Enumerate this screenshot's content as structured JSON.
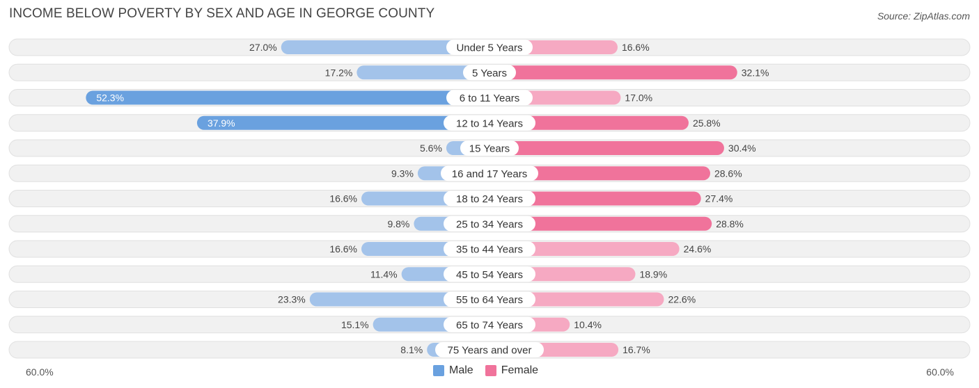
{
  "title": "INCOME BELOW POVERTY BY SEX AND AGE IN GEORGE COUNTY",
  "source": "Source: ZipAtlas.com",
  "colors": {
    "male_strong": "#6aa1df",
    "male_light": "#a3c3ea",
    "female_strong": "#f0739b",
    "female_light": "#f6a9c2",
    "row_bg": "#f1f1f1",
    "row_border": "#e0e0e0"
  },
  "legend": {
    "male": "Male",
    "female": "Female"
  },
  "chart_data": {
    "type": "bar",
    "orientation": "horizontal-diverging",
    "title": "INCOME BELOW POVERTY BY SEX AND AGE IN GEORGE COUNTY",
    "categories": [
      "Under 5 Years",
      "5 Years",
      "6 to 11 Years",
      "12 to 14 Years",
      "15 Years",
      "16 and 17 Years",
      "18 to 24 Years",
      "25 to 34 Years",
      "35 to 44 Years",
      "45 to 54 Years",
      "55 to 64 Years",
      "65 to 74 Years",
      "75 Years and over"
    ],
    "series": [
      {
        "name": "Male",
        "values": [
          27.0,
          17.2,
          52.3,
          37.9,
          5.6,
          9.3,
          16.6,
          9.8,
          16.6,
          11.4,
          23.3,
          15.1,
          8.1
        ],
        "labels": [
          "27.0%",
          "17.2%",
          "52.3%",
          "37.9%",
          "5.6%",
          "9.3%",
          "16.6%",
          "9.8%",
          "16.6%",
          "11.4%",
          "23.3%",
          "15.1%",
          "8.1%"
        ]
      },
      {
        "name": "Female",
        "values": [
          16.6,
          32.1,
          17.0,
          25.8,
          30.4,
          28.6,
          27.4,
          28.8,
          24.6,
          18.9,
          22.6,
          10.4,
          16.7
        ],
        "labels": [
          "16.6%",
          "32.1%",
          "17.0%",
          "25.8%",
          "30.4%",
          "28.6%",
          "27.4%",
          "28.8%",
          "24.6%",
          "18.9%",
          "22.6%",
          "10.4%",
          "16.7%"
        ]
      }
    ],
    "xlim": [
      -60,
      60
    ],
    "axis_min_label": "60.0%",
    "axis_max_label": "60.0%",
    "legend_position": "bottom-center"
  }
}
